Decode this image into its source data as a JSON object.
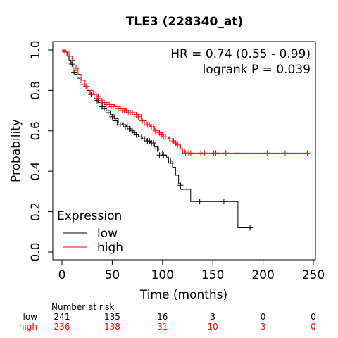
{
  "chart_data": {
    "type": "line",
    "title": "TLE3 (228340_at)",
    "xlabel": "Time (months)",
    "ylabel": "Probability",
    "xlim": [
      0,
      250
    ],
    "ylim": [
      0,
      1
    ],
    "x_ticks": [
      "0",
      "50",
      "100",
      "150",
      "200",
      "250"
    ],
    "y_ticks": [
      "0.0",
      "0.2",
      "0.4",
      "0.6",
      "0.8",
      "1.0"
    ],
    "annotations": {
      "hr": "HR = 0.74 (0.55 - 0.99)",
      "logrank": "logrank P = 0.039"
    },
    "legend": {
      "title": "Expression",
      "placement": "bottom-left"
    },
    "series": [
      {
        "name": "low",
        "color": "#000000",
        "steps": [
          [
            0,
            1.0
          ],
          [
            2,
            0.99
          ],
          [
            5,
            0.97
          ],
          [
            7,
            0.95
          ],
          [
            9,
            0.93
          ],
          [
            11,
            0.9
          ],
          [
            13,
            0.88
          ],
          [
            15,
            0.86
          ],
          [
            18,
            0.84
          ],
          [
            20,
            0.83
          ],
          [
            22,
            0.82
          ],
          [
            25,
            0.8
          ],
          [
            28,
            0.78
          ],
          [
            32,
            0.76
          ],
          [
            36,
            0.74
          ],
          [
            40,
            0.72
          ],
          [
            44,
            0.7
          ],
          [
            48,
            0.68
          ],
          [
            52,
            0.66
          ],
          [
            56,
            0.64
          ],
          [
            60,
            0.63
          ],
          [
            64,
            0.62
          ],
          [
            68,
            0.6
          ],
          [
            72,
            0.58
          ],
          [
            76,
            0.57
          ],
          [
            80,
            0.56
          ],
          [
            84,
            0.55
          ],
          [
            88,
            0.54
          ],
          [
            92,
            0.52
          ],
          [
            96,
            0.5
          ],
          [
            100,
            0.48
          ],
          [
            104,
            0.47
          ],
          [
            106,
            0.44
          ],
          [
            110,
            0.42
          ],
          [
            113,
            0.38
          ],
          [
            116,
            0.34
          ],
          [
            118,
            0.31
          ],
          [
            128,
            0.25
          ],
          [
            140,
            0.25
          ],
          [
            175,
            0.12
          ],
          [
            190,
            0.12
          ]
        ],
        "censors": [
          [
            8,
            0.97
          ],
          [
            10,
            0.93
          ],
          [
            12,
            0.89
          ],
          [
            20,
            0.83
          ],
          [
            29,
            0.78
          ],
          [
            35,
            0.75
          ],
          [
            40,
            0.72
          ],
          [
            42,
            0.71
          ],
          [
            46,
            0.69
          ],
          [
            50,
            0.67
          ],
          [
            53,
            0.65
          ],
          [
            55,
            0.64
          ],
          [
            58,
            0.63
          ],
          [
            61,
            0.63
          ],
          [
            63,
            0.62
          ],
          [
            65,
            0.62
          ],
          [
            67,
            0.61
          ],
          [
            70,
            0.6
          ],
          [
            72,
            0.59
          ],
          [
            74,
            0.58
          ],
          [
            79,
            0.57
          ],
          [
            82,
            0.56
          ],
          [
            85,
            0.55
          ],
          [
            87,
            0.55
          ],
          [
            89,
            0.54
          ],
          [
            91,
            0.54
          ],
          [
            95,
            0.51
          ],
          [
            97,
            0.48
          ],
          [
            101,
            0.48
          ],
          [
            108,
            0.45
          ],
          [
            110,
            0.44
          ],
          [
            118,
            0.33
          ],
          [
            137,
            0.25
          ],
          [
            161,
            0.25
          ],
          [
            187,
            0.12
          ]
        ]
      },
      {
        "name": "high",
        "color": "#ff0000",
        "steps": [
          [
            0,
            1.0
          ],
          [
            4,
            0.99
          ],
          [
            7,
            0.97
          ],
          [
            10,
            0.95
          ],
          [
            13,
            0.91
          ],
          [
            16,
            0.88
          ],
          [
            19,
            0.85
          ],
          [
            23,
            0.82
          ],
          [
            27,
            0.8
          ],
          [
            31,
            0.78
          ],
          [
            35,
            0.76
          ],
          [
            40,
            0.74
          ],
          [
            46,
            0.73
          ],
          [
            52,
            0.72
          ],
          [
            58,
            0.71
          ],
          [
            63,
            0.7
          ],
          [
            70,
            0.69
          ],
          [
            74,
            0.68
          ],
          [
            79,
            0.65
          ],
          [
            84,
            0.63
          ],
          [
            88,
            0.62
          ],
          [
            92,
            0.6
          ],
          [
            96,
            0.59
          ],
          [
            100,
            0.57
          ],
          [
            106,
            0.56
          ],
          [
            110,
            0.54
          ],
          [
            114,
            0.53
          ],
          [
            118,
            0.51
          ],
          [
            122,
            0.49
          ],
          [
            245,
            0.49
          ]
        ],
        "censors": [
          [
            3,
            0.99
          ],
          [
            8,
            0.97
          ],
          [
            14,
            0.91
          ],
          [
            24,
            0.82
          ],
          [
            32,
            0.78
          ],
          [
            36,
            0.77
          ],
          [
            39,
            0.75
          ],
          [
            42,
            0.74
          ],
          [
            44,
            0.73
          ],
          [
            47,
            0.73
          ],
          [
            49,
            0.72
          ],
          [
            51,
            0.72
          ],
          [
            53,
            0.72
          ],
          [
            56,
            0.71
          ],
          [
            58,
            0.71
          ],
          [
            60,
            0.7
          ],
          [
            62,
            0.7
          ],
          [
            64,
            0.7
          ],
          [
            66,
            0.69
          ],
          [
            68,
            0.69
          ],
          [
            70,
            0.69
          ],
          [
            72,
            0.68
          ],
          [
            74,
            0.68
          ],
          [
            76,
            0.67
          ],
          [
            80,
            0.65
          ],
          [
            82,
            0.64
          ],
          [
            85,
            0.63
          ],
          [
            87,
            0.63
          ],
          [
            89,
            0.62
          ],
          [
            91,
            0.62
          ],
          [
            93,
            0.6
          ],
          [
            97,
            0.59
          ],
          [
            99,
            0.58
          ],
          [
            101,
            0.57
          ],
          [
            103,
            0.57
          ],
          [
            107,
            0.56
          ],
          [
            111,
            0.55
          ],
          [
            113,
            0.54
          ],
          [
            115,
            0.53
          ],
          [
            120,
            0.5
          ],
          [
            123,
            0.49
          ],
          [
            126,
            0.49
          ],
          [
            128,
            0.49
          ],
          [
            138,
            0.49
          ],
          [
            142,
            0.49
          ],
          [
            151,
            0.49
          ],
          [
            153,
            0.49
          ],
          [
            155,
            0.49
          ],
          [
            163,
            0.49
          ],
          [
            174,
            0.49
          ],
          [
            204,
            0.49
          ],
          [
            222,
            0.49
          ],
          [
            244,
            0.49
          ]
        ]
      }
    ],
    "risk_table": {
      "header": "Number at risk",
      "timepoints": [
        0,
        50,
        100,
        150,
        200,
        250
      ],
      "rows": [
        {
          "label": "low",
          "color": "#000000",
          "values": [
            "241",
            "135",
            "16",
            "3",
            "0",
            "0"
          ]
        },
        {
          "label": "high",
          "color": "#ff0000",
          "values": [
            "236",
            "138",
            "31",
            "10",
            "3",
            "0"
          ]
        }
      ]
    }
  }
}
